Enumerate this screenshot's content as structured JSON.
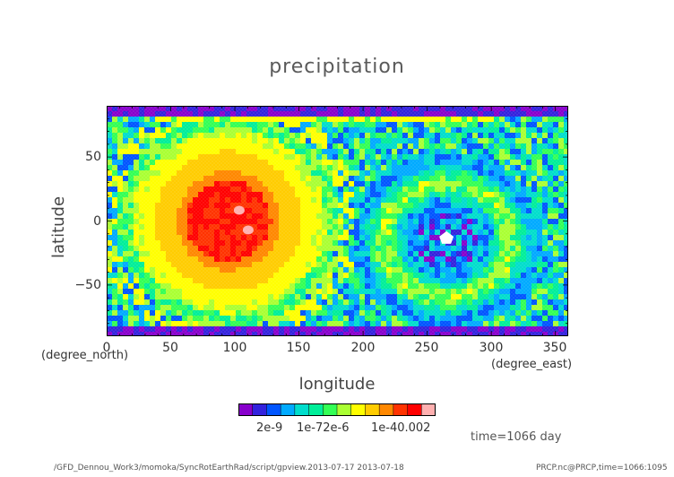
{
  "chart_data": {
    "type": "heatmap",
    "title": "precipitation",
    "xlabel": "longitude",
    "ylabel": "latitude",
    "x_unit": "(degree_east)",
    "y_unit": "(degree_north)",
    "xlim": [
      0,
      360
    ],
    "ylim": [
      -90,
      90
    ],
    "x_ticks": [
      "0",
      "50",
      "100",
      "150",
      "200",
      "250",
      "300",
      "350"
    ],
    "y_ticks": [
      "50",
      "0",
      "−50"
    ],
    "colorbar": {
      "colors": [
        "#8800cc",
        "#3322dd",
        "#0055ff",
        "#00aaff",
        "#00ddcc",
        "#00ee99",
        "#33ff55",
        "#aaff33",
        "#ffff00",
        "#ffcc00",
        "#ff8800",
        "#ff3300",
        "#ff0000",
        "#ffb0b0"
      ],
      "tick_labels": [
        "2e-9",
        "1e-72e-6",
        "1e-40.002"
      ]
    },
    "features": [
      {
        "kind": "maximum",
        "center_lon": 95,
        "center_lat": 0,
        "level": "1e-4 to 0.002"
      },
      {
        "kind": "ring",
        "center_lon": 95,
        "center_lat": 0,
        "level": "2e-6 to 1e-5"
      },
      {
        "kind": "minimum",
        "center_lon": 265,
        "center_lat": -15,
        "level": "below 2e-9"
      }
    ]
  },
  "time_label": "time=1066 day",
  "footer_left": "/GFD_Dennou_Work3/momoka/SyncRotEarthRad/script/gpview.2013-07-17  2013-07-18",
  "footer_right": "PRCP.nc@PRCP,time=1066:1095"
}
